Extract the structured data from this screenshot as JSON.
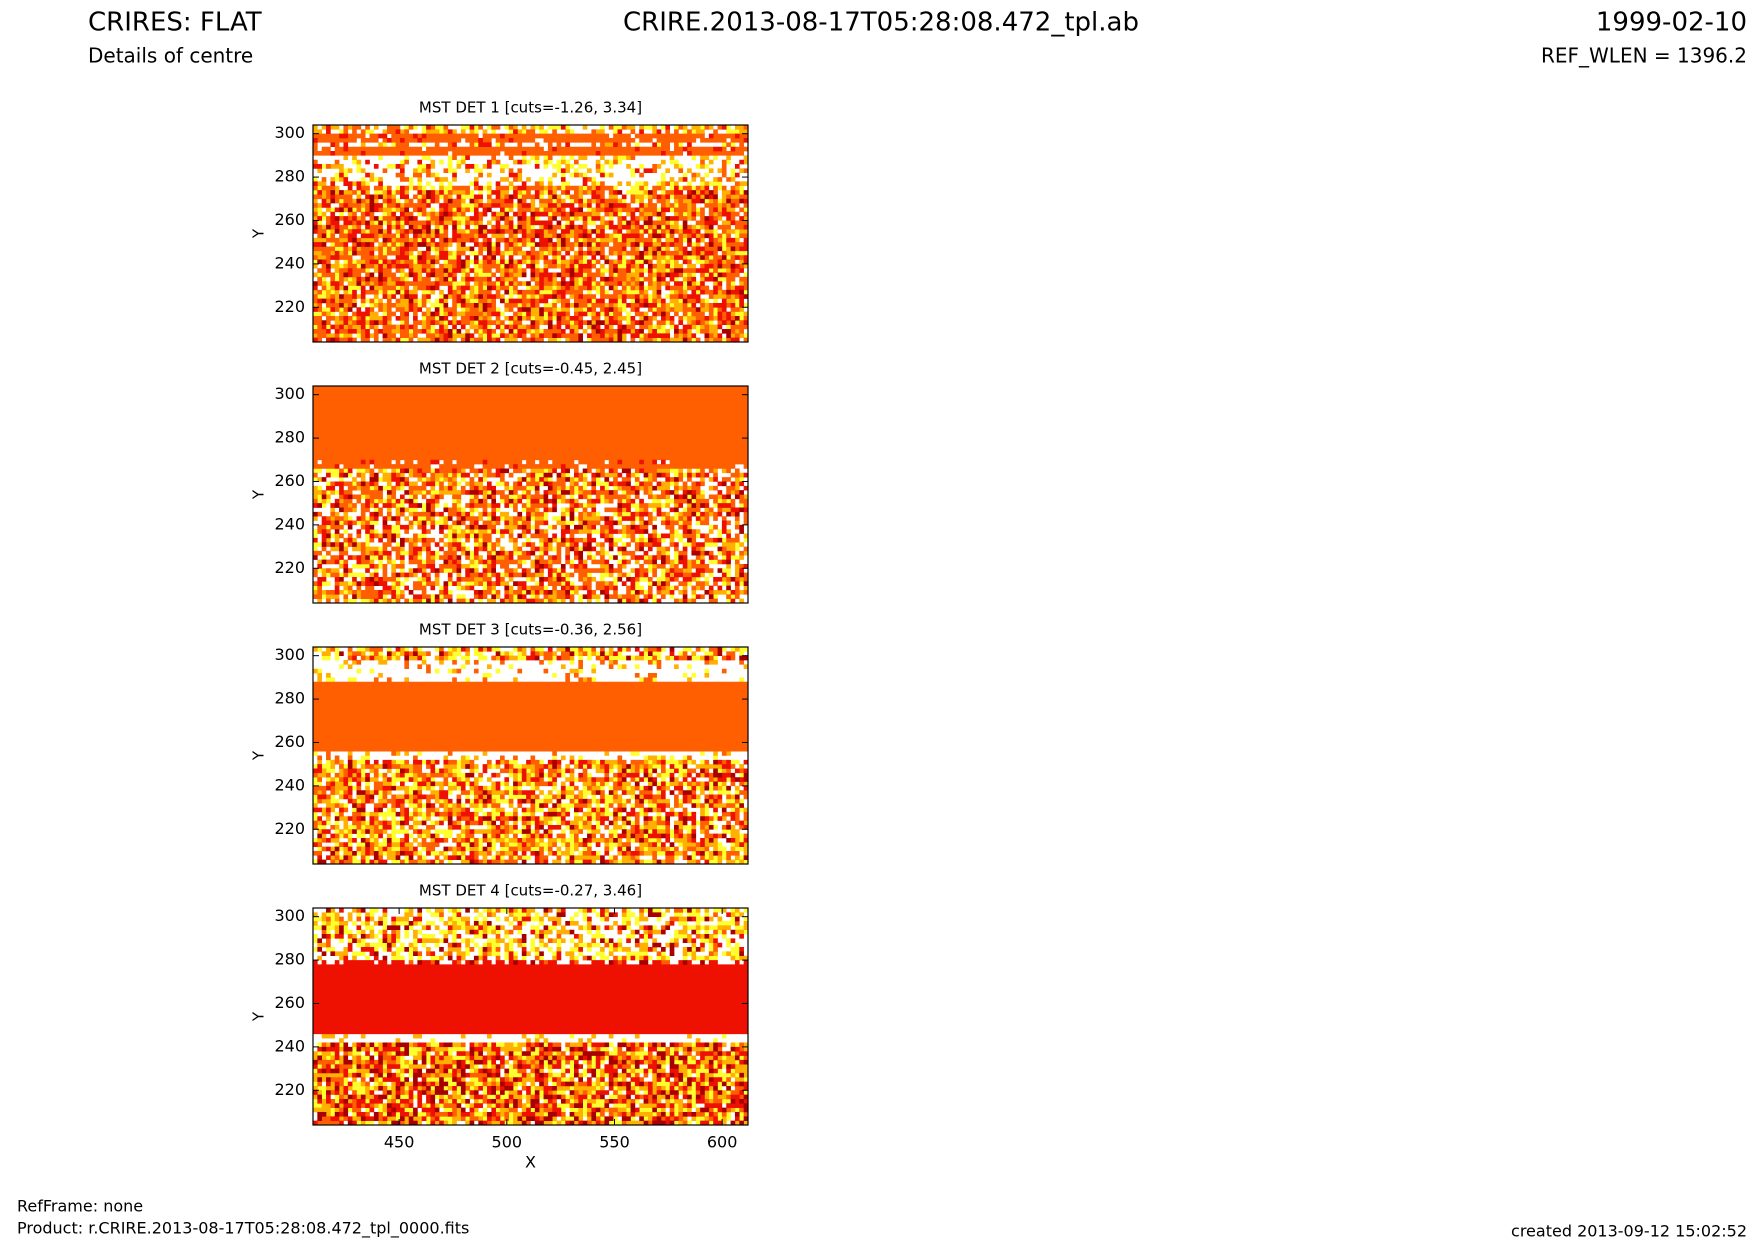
{
  "header": {
    "title": "CRIRES: FLAT",
    "file": "CRIRE.2013-08-17T05:28:08.472_tpl.ab",
    "date": "1999-02-10",
    "subtitle": "Details of centre",
    "ref_wlen": "REF_WLEN = 1396.2"
  },
  "footer": {
    "ref_frame": "RefFrame: none",
    "product": "Product: r.CRIRE.2013-08-17T05:28:08.472_tpl_0000.fits",
    "created": "created 2013-09-12 15:02:52"
  },
  "chart_data": [
    {
      "type": "image",
      "title": "MST DET 1 [cuts=-1.26, 3.34]",
      "ylabel": "Y",
      "xlim": [
        410,
        612
      ],
      "ylim": [
        204,
        304
      ],
      "yticks": [
        220,
        240,
        260,
        280,
        300
      ]
    },
    {
      "type": "image",
      "title": "MST DET 2 [cuts=-0.45, 2.45]",
      "ylabel": "Y",
      "xlim": [
        410,
        612
      ],
      "ylim": [
        204,
        304
      ],
      "yticks": [
        220,
        240,
        260,
        280,
        300
      ]
    },
    {
      "type": "image",
      "title": "MST DET 3 [cuts=-0.36, 2.56]",
      "ylabel": "Y",
      "xlim": [
        410,
        612
      ],
      "ylim": [
        204,
        304
      ],
      "yticks": [
        220,
        240,
        260,
        280,
        300
      ]
    },
    {
      "type": "image",
      "title": "MST DET 4 [cuts=-0.27, 3.46]",
      "ylabel": "Y",
      "xlabel": "X",
      "xlim": [
        410,
        612
      ],
      "ylim": [
        204,
        304
      ],
      "yticks": [
        220,
        240,
        260,
        280,
        300
      ],
      "xticks": [
        450,
        500,
        550,
        600
      ]
    }
  ]
}
